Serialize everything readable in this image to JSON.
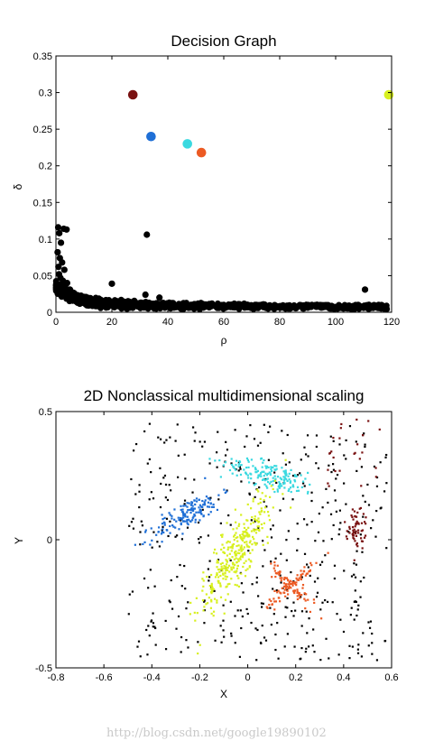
{
  "chart_data": [
    {
      "type": "scatter",
      "title": "Decision Graph",
      "xlabel": "ρ",
      "ylabel": "δ",
      "xlim": [
        0,
        120
      ],
      "ylim": [
        0,
        0.35
      ],
      "xticks": [
        "0",
        "20",
        "40",
        "60",
        "80",
        "100",
        "120"
      ],
      "yticks": [
        "0",
        "0.05",
        "0.1",
        "0.15",
        "0.2",
        "0.25",
        "0.3",
        "0.35"
      ],
      "grid": false,
      "legend": "none",
      "series": [
        {
          "color": "#000000",
          "kind": "non-centers",
          "points": [
            [
              0.8,
              0.116
            ],
            [
              1.2,
              0.108
            ],
            [
              1.8,
              0.095
            ],
            [
              2.8,
              0.114
            ],
            [
              3.8,
              0.113
            ],
            [
              0.6,
              0.082
            ],
            [
              1.4,
              0.074
            ],
            [
              2.2,
              0.068
            ],
            [
              0.9,
              0.062
            ],
            [
              3.0,
              0.058
            ],
            [
              1.1,
              0.052
            ],
            [
              1.6,
              0.047
            ],
            [
              2.5,
              0.043
            ],
            [
              4.0,
              0.04
            ],
            [
              0.7,
              0.038
            ],
            [
              3.3,
              0.036
            ],
            [
              1.9,
              0.033
            ],
            [
              5.0,
              0.031
            ],
            [
              2.7,
              0.029
            ],
            [
              6.0,
              0.027
            ],
            [
              4.4,
              0.025
            ],
            [
              7.0,
              0.024
            ],
            [
              8.5,
              0.022
            ],
            [
              10.0,
              0.021
            ],
            [
              12.0,
              0.019
            ],
            [
              14.0,
              0.018
            ],
            [
              16.0,
              0.017
            ],
            [
              18.0,
              0.016
            ],
            [
              22.0,
              0.015
            ],
            [
              25.0,
              0.014
            ],
            [
              28.0,
              0.013
            ],
            [
              32.0,
              0.013
            ],
            [
              36.0,
              0.012
            ],
            [
              40.0,
              0.012
            ],
            [
              45.0,
              0.011
            ],
            [
              50.0,
              0.011
            ],
            [
              55.0,
              0.01
            ],
            [
              60.0,
              0.01
            ],
            [
              65.0,
              0.009
            ],
            [
              70.0,
              0.009
            ],
            [
              75.0,
              0.008
            ],
            [
              80.0,
              0.008
            ],
            [
              85.0,
              0.008
            ],
            [
              90.0,
              0.007
            ],
            [
              95.0,
              0.007
            ],
            [
              100.0,
              0.007
            ],
            [
              105.0,
              0.006
            ],
            [
              110.0,
              0.006
            ],
            [
              115.0,
              0.006
            ],
            [
              118.0,
              0.005
            ],
            [
              20.0,
              0.039
            ],
            [
              32.5,
              0.106
            ],
            [
              32.0,
              0.024
            ],
            [
              110.5,
              0.031
            ],
            [
              37.0,
              0.02
            ]
          ]
        },
        {
          "color": "#7a1212",
          "kind": "center",
          "points": [
            [
              27.5,
              0.297
            ]
          ]
        },
        {
          "color": "#1f6fd6",
          "kind": "center",
          "points": [
            [
              34.0,
              0.24
            ]
          ]
        },
        {
          "color": "#3ad9e0",
          "kind": "center",
          "points": [
            [
              47.0,
              0.23
            ]
          ]
        },
        {
          "color": "#ec5a23",
          "kind": "center",
          "points": [
            [
              52.0,
              0.218
            ]
          ]
        },
        {
          "color": "#d8f020",
          "kind": "center",
          "points": [
            [
              119.0,
              0.297
            ]
          ]
        }
      ]
    },
    {
      "type": "scatter",
      "title": "2D Nonclassical multidimensional scaling",
      "xlabel": "X",
      "ylabel": "Y",
      "xlim": [
        -0.8,
        0.6
      ],
      "ylim": [
        -0.5,
        0.5
      ],
      "xticks": [
        "-0.8",
        "-0.6",
        "-0.4",
        "-0.2",
        "0",
        "0.2",
        "0.4",
        "0.6"
      ],
      "yticks": [
        "-0.5",
        "0",
        "0.5"
      ],
      "grid": false,
      "legend": "none",
      "series": [
        {
          "color": "#000000",
          "kind": "noise",
          "region": {
            "xmin": -0.5,
            "xmax": 0.58,
            "ymin": -0.47,
            "ymax": 0.46
          },
          "count": 430
        },
        {
          "color": "#1f6fd6",
          "kind": "cluster",
          "center": [
            -0.25,
            0.1
          ],
          "major_axis_deg": 30,
          "spread": [
            0.08,
            0.025
          ],
          "count": 150
        },
        {
          "color": "#3ad9e0",
          "kind": "cluster",
          "center": [
            0.1,
            0.25
          ],
          "major_axis_deg": -15,
          "spread": [
            0.1,
            0.025
          ],
          "count": 170
        },
        {
          "color": "#d8f020",
          "kind": "cluster",
          "center": [
            -0.05,
            -0.05
          ],
          "major_axis_deg": 58,
          "spread": [
            0.13,
            0.035
          ],
          "count": 320
        },
        {
          "color": "#ec5a23",
          "kind": "cross",
          "center": [
            0.18,
            -0.18
          ],
          "spread": [
            0.07,
            0.012
          ],
          "count": 130
        },
        {
          "color": "#7a1212",
          "kind": "cluster",
          "center": [
            0.45,
            0.04
          ],
          "major_axis_deg": 85,
          "spread": [
            0.04,
            0.02
          ],
          "count": 60
        },
        {
          "color": "#7a1212",
          "kind": "noise",
          "region": {
            "xmin": 0.33,
            "xmax": 0.55,
            "ymin": 0.2,
            "ymax": 0.47
          },
          "count": 25
        }
      ]
    }
  ],
  "watermark": "http://blog.csdn.net/google19890102"
}
